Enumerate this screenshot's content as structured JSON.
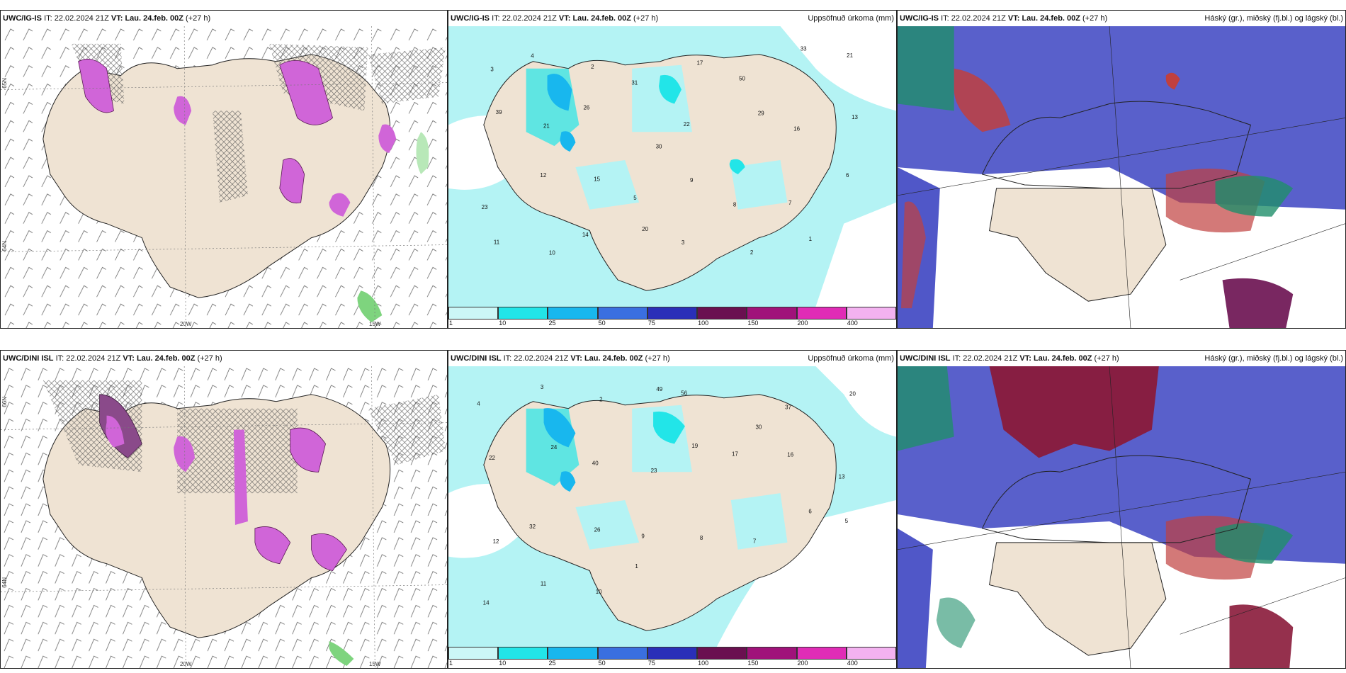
{
  "rows": [
    {
      "model": "UWC/IG-IS",
      "it_label": "IT:",
      "it": "22.02.2024 21Z",
      "vt_label": "VT:",
      "vt": "Lau. 24.feb. 00Z",
      "lead": "(+27 h)",
      "lat_labels": [
        "65N",
        "64N",
        "63N"
      ],
      "lon_labels": [
        "20W",
        "15W"
      ],
      "precip_numbers": [
        "3",
        "4",
        "2",
        "31",
        "17",
        "50",
        "33",
        "21",
        "39",
        "21",
        "26",
        "30",
        "22",
        "29",
        "16",
        "13",
        "23",
        "12",
        "15",
        "5",
        "9",
        "8",
        "7",
        "6",
        "11",
        "10",
        "14",
        "20",
        "3",
        "2",
        "1"
      ]
    },
    {
      "model": "UWC/DINI ISL",
      "it_label": "IT:",
      "it": "22.02.2024 21Z",
      "vt_label": "VT:",
      "vt": "Lau. 24.feb. 00Z",
      "lead": "(+27 h)",
      "lat_labels": [
        "66N",
        "64N",
        "63N"
      ],
      "lon_labels": [
        "20W",
        "15W"
      ],
      "precip_numbers": [
        "4",
        "3",
        "2",
        "49",
        "56",
        "30",
        "37",
        "20",
        "22",
        "24",
        "40",
        "23",
        "19",
        "17",
        "16",
        "13",
        "12",
        "32",
        "26",
        "9",
        "8",
        "7",
        "6",
        "5",
        "14",
        "11",
        "10",
        "1"
      ]
    }
  ],
  "precip_title": "Uppsöfnuð úrkoma (mm)",
  "cloud_title": "Háský (gr.), miðský (fj.bl.) og lágský (bl.)",
  "colorbar": {
    "ticks": [
      "1",
      "10",
      "25",
      "50",
      "75",
      "100",
      "150",
      "200",
      "400"
    ],
    "colors": [
      "#ccf7f7",
      "#22e5e8",
      "#18b7ee",
      "#3a6fe0",
      "#2a2fb8",
      "#6a1050",
      "#a0127a",
      "#e02cb6",
      "#f3b2f0"
    ]
  },
  "colors": {
    "land": "#efe3d3",
    "sea_precip": "#b4f3f4",
    "cloud_high": "#5057c8",
    "cloud_mid": "#1f8f6a",
    "cloud_low": "#c0403f",
    "snow": "#d065d8"
  }
}
